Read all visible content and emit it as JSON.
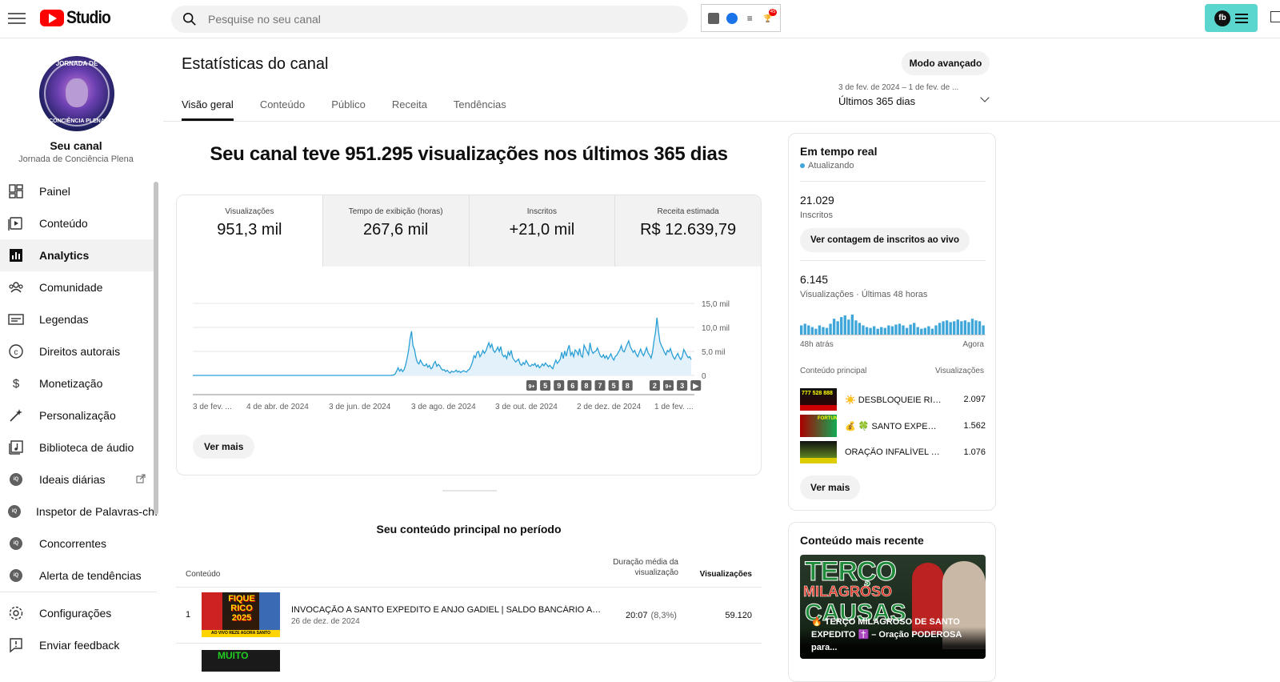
{
  "topbar": {
    "logo_text": "Studio",
    "search_placeholder": "Pesquise no seu canal",
    "ext_badge": "45",
    "account_initials": "fb"
  },
  "sidebar": {
    "avatar_top_text": "JORNADA DE",
    "avatar_bottom_text": "CONCIÊNCIA PLENA",
    "channel_title": "Seu canal",
    "channel_name": "Jornada de Conciência Plena",
    "items": [
      {
        "label": "Painel",
        "icon": "dashboard-icon"
      },
      {
        "label": "Conteúdo",
        "icon": "content-icon"
      },
      {
        "label": "Analytics",
        "icon": "analytics-icon",
        "active": true
      },
      {
        "label": "Comunidade",
        "icon": "community-icon"
      },
      {
        "label": "Legendas",
        "icon": "subtitles-icon"
      },
      {
        "label": "Direitos autorais",
        "icon": "copyright-icon"
      },
      {
        "label": "Monetização",
        "icon": "monetization-icon"
      },
      {
        "label": "Personalização",
        "icon": "customization-icon"
      },
      {
        "label": "Biblioteca de áudio",
        "icon": "audio-library-icon"
      },
      {
        "label": "Ideais diárias",
        "icon": "vidiq-icon"
      },
      {
        "label": "Inspetor de Palavras-chave",
        "icon": "vidiq-icon"
      },
      {
        "label": "Concorrentes",
        "icon": "vidiq-icon"
      },
      {
        "label": "Alerta de tendências",
        "icon": "vidiq-icon"
      }
    ],
    "bottom": [
      {
        "label": "Configurações",
        "icon": "settings-icon"
      },
      {
        "label": "Enviar feedback",
        "icon": "feedback-icon"
      }
    ]
  },
  "main": {
    "title": "Estatísticas do canal",
    "advanced_mode": "Modo avançado",
    "date_range": "3 de fev. de 2024 – 1 de fev. de ...",
    "date_label": "Últimos 365 dias",
    "tabs": [
      "Visão geral",
      "Conteúdo",
      "Público",
      "Receita",
      "Tendências"
    ],
    "headline": "Seu canal teve 951.295 visualizações nos últimos 365 dias",
    "metrics": [
      {
        "label": "Visualizações",
        "value": "951,3 mil"
      },
      {
        "label": "Tempo de exibição (horas)",
        "value": "267,6 mil"
      },
      {
        "label": "Inscritos",
        "value": "+21,0 mil"
      },
      {
        "label": "Receita estimada",
        "value": "R$ 12.639,79"
      }
    ],
    "see_more": "Ver mais",
    "content_title": "Seu conteúdo principal no período",
    "table": {
      "col_content": "Conteúdo",
      "col_duration": "Duração média da visualização",
      "col_views": "Visualizações",
      "rows": [
        {
          "index": "1",
          "title": "INVOCAÇÃO A SANTO EXPEDITO E ANJO GADIEL | SALDO BANCÁRIO ABUNDANTE",
          "date": "26 de dez. de 2024",
          "duration": "20:07",
          "pct": "(8,3%)",
          "views": "59.120",
          "thumb_text": "FIQUE RICO 2025",
          "thumb_bar": "AO VIVO REZE AGORA SANTO EXPEDITO E ANJO GADIEL"
        }
      ],
      "next_thumb_text": "MUITO"
    }
  },
  "realtime": {
    "title": "Em tempo real",
    "updating": "Atualizando",
    "subs_value": "21.029",
    "subs_label": "Inscritos",
    "live_btn": "Ver contagem de inscritos ao vivo",
    "views_value": "6.145",
    "views_label": "Visualizações · Últimas 48 horas",
    "axis_left": "48h atrás",
    "axis_right": "Agora",
    "top_header": "Conteúdo principal",
    "top_views_header": "Visualizações",
    "top_items": [
      {
        "title": "☀️ DESBLOQUEIE RIQUEZA...",
        "views": "2.097"
      },
      {
        "title": "💰 🍀 SANTO EXPEDITO...",
        "views": "1.562"
      },
      {
        "title": "ORAÇÃO INFALÍVEL a SANTO...",
        "views": "1.076"
      }
    ],
    "see_more": "Ver mais",
    "bars": [
      12,
      14,
      12,
      10,
      8,
      12,
      10,
      9,
      14,
      20,
      17,
      22,
      24,
      19,
      25,
      18,
      15,
      12,
      10,
      9,
      11,
      8,
      10,
      9,
      12,
      11,
      13,
      14,
      12,
      9,
      13,
      15,
      10,
      8,
      9,
      11,
      8,
      12,
      15,
      17,
      18,
      16,
      17,
      19,
      17,
      18,
      16,
      20,
      18,
      17,
      12
    ]
  },
  "recent": {
    "title": "Conteúdo mais recente",
    "thumb_w1": "TERÇO",
    "thumb_w2": "MILAGROSO",
    "thumb_w3": "CAUSAS",
    "caption": "🔥 TERÇO MILAGROSO DE SANTO EXPEDITO ✝️ – Oração PODEROSA para..."
  },
  "chart_data": {
    "type": "area",
    "ylabel": "",
    "y_ticks": [
      "15,0 mil",
      "10,0 mil",
      "5,0 mil",
      "0"
    ],
    "ylim": [
      0,
      15000
    ],
    "x_tick_labels": [
      "3 de fev. ...",
      "4 de abr. de 2024",
      "3 de jun. de 2024",
      "3 de ago. de 2024",
      "3 de out. de 2024",
      "2 de dez. de 2024",
      "1 de fev. ..."
    ],
    "markers": [
      "9+",
      "5",
      "9",
      "6",
      "8",
      "7",
      "5",
      "8",
      "",
      "2",
      "9+",
      "3",
      "▶"
    ],
    "series": [
      {
        "values": [
          0,
          0,
          0,
          0,
          0,
          0,
          0,
          0,
          0,
          0,
          0,
          0,
          0,
          0,
          0,
          0,
          0,
          0,
          0,
          0,
          0,
          0,
          0,
          0,
          0,
          0,
          0,
          0,
          0,
          0,
          0,
          0,
          0,
          0,
          0,
          0,
          0,
          0,
          0,
          0,
          0,
          0,
          0,
          0,
          0,
          0,
          0,
          0,
          0,
          0,
          0,
          0,
          0,
          0,
          0,
          0,
          0,
          0,
          0,
          0,
          0,
          0,
          0,
          0,
          0,
          0,
          0,
          0,
          0,
          0,
          0,
          0,
          0,
          0,
          0,
          0,
          0,
          0,
          0,
          0,
          0,
          0,
          0,
          0,
          0,
          0,
          0,
          0,
          0,
          0,
          0,
          0,
          0,
          0,
          0,
          0,
          0,
          0,
          0,
          0,
          0,
          0,
          0,
          0,
          0,
          0,
          0,
          0,
          0,
          0,
          0,
          0,
          0,
          0,
          0,
          0,
          0,
          0,
          0,
          0,
          0,
          0,
          0,
          0,
          0,
          0,
          0,
          0,
          0,
          0,
          0,
          0,
          0,
          0,
          50,
          80,
          300,
          900,
          1600,
          900,
          1300,
          800,
          1200,
          2100,
          3500,
          5200,
          7600,
          9200,
          6200,
          5400,
          3700,
          2700,
          2400,
          3200,
          2600,
          2100,
          2000,
          2400,
          1700,
          2100,
          1400,
          1600,
          2500,
          2900,
          1900,
          2300,
          2000,
          1400,
          1100,
          1200,
          800,
          1100,
          700,
          500,
          900,
          700,
          800,
          1100,
          700,
          900,
          600,
          800,
          1000,
          800,
          700,
          1100,
          1300,
          2000,
          2800,
          4100,
          3700,
          4800,
          5000,
          3900,
          4400,
          5200,
          4600,
          5100,
          6000,
          6800,
          5800,
          6500,
          5200,
          4800,
          5300,
          5900,
          5000,
          6000,
          4400,
          3900,
          4200,
          3500,
          4900,
          4200,
          5200,
          3700,
          3200,
          2800,
          3100,
          3400,
          2400,
          2100,
          2700,
          2300,
          3100,
          2600,
          2000,
          1900,
          2300,
          2100,
          2500,
          1800,
          2200,
          1600,
          1900,
          2400,
          2000,
          2600,
          2200,
          1800,
          2100,
          1700,
          1400,
          2400,
          3200,
          2500,
          2900,
          3400,
          4800,
          3500,
          5100,
          4000,
          5400,
          6300,
          4200,
          4800,
          3900,
          5300,
          5000,
          4300,
          5600,
          4100,
          3800,
          6300,
          5600,
          5000,
          4300,
          6800,
          5200,
          4600,
          4900,
          5100,
          5700,
          4800,
          4000,
          3800,
          4300,
          3600,
          4100,
          3400,
          3900,
          4500,
          3700,
          3200,
          4000,
          4200,
          4800,
          5300,
          6200,
          5100,
          4900,
          5800,
          6500,
          7200,
          6000,
          5400,
          4800,
          5200,
          4400,
          3900,
          4700,
          5500,
          4600,
          4100,
          4900,
          5800,
          4700,
          4300,
          3600,
          4800,
          7200,
          9000,
          12000,
          9200,
          7000,
          6200,
          5600,
          4800,
          4300,
          5200,
          4900,
          5600,
          4600,
          3800,
          3400,
          4100,
          4600,
          3800,
          3300,
          3900,
          5400,
          4800,
          4200,
          3700,
          3900,
          3300
        ]
      }
    ]
  }
}
